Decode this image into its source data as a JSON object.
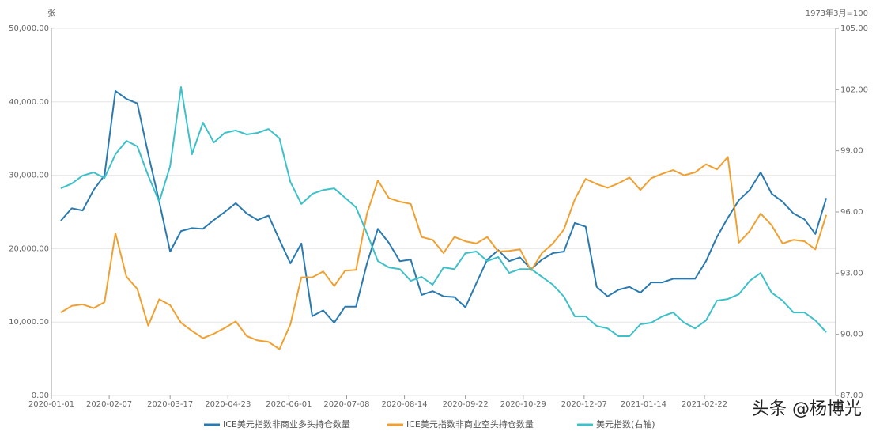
{
  "chart_data": {
    "type": "line",
    "y_unit_label": "张",
    "y2_unit_label": "1973年3月=100",
    "watermark": "头条 @杨博光",
    "x": [
      "2020-01-07",
      "2020-01-14",
      "2020-01-21",
      "2020-01-28",
      "2020-02-04",
      "2020-02-11",
      "2020-02-18",
      "2020-02-25",
      "2020-03-03",
      "2020-03-10",
      "2020-03-17",
      "2020-03-24",
      "2020-03-31",
      "2020-04-07",
      "2020-04-14",
      "2020-04-21",
      "2020-04-28",
      "2020-05-05",
      "2020-05-12",
      "2020-05-19",
      "2020-05-26",
      "2020-06-02",
      "2020-06-09",
      "2020-06-16",
      "2020-06-23",
      "2020-06-30",
      "2020-07-07",
      "2020-07-14",
      "2020-07-21",
      "2020-07-28",
      "2020-08-04",
      "2020-08-11",
      "2020-08-18",
      "2020-08-25",
      "2020-09-01",
      "2020-09-08",
      "2020-09-15",
      "2020-09-22",
      "2020-09-29",
      "2020-10-06",
      "2020-10-13",
      "2020-10-20",
      "2020-10-27",
      "2020-11-03",
      "2020-11-10",
      "2020-11-17",
      "2020-11-24",
      "2020-12-01",
      "2020-12-08",
      "2020-12-15",
      "2020-12-22",
      "2020-12-29",
      "2021-01-05",
      "2021-01-12",
      "2021-01-19",
      "2021-01-26",
      "2021-02-02",
      "2021-02-09",
      "2021-02-16",
      "2021-02-23",
      "2021-03-02",
      "2021-03-09",
      "2021-03-16",
      "2021-03-23",
      "2021-03-30",
      "2021-04-06",
      "2021-04-13",
      "2021-04-20",
      "2021-04-27",
      "2021-05-04",
      "2021-05-11"
    ],
    "series": [
      {
        "name": "ICE美元指数非商业多头持仓数量",
        "color": "#2a7ab0",
        "values": [
          23800,
          25500,
          25200,
          28000,
          30000,
          41500,
          40400,
          39800,
          32900,
          26400,
          19600,
          22400,
          22800,
          22700,
          23900,
          25000,
          26200,
          24800,
          23900,
          24500,
          21200,
          18000,
          20700,
          10800,
          11600,
          9900,
          12100,
          12100,
          18000,
          22700,
          20800,
          18300,
          18500,
          13700,
          14200,
          13500,
          13400,
          12000,
          15300,
          18500,
          19800,
          18300,
          18800,
          17200,
          18500,
          19400,
          19600,
          23500,
          23000,
          14800,
          13500,
          14400,
          14800,
          14000,
          15400,
          15400,
          15900,
          15900,
          15900,
          18300,
          21600,
          24200,
          26600,
          28000,
          30400,
          27500,
          26400,
          24800,
          24000,
          22000,
          26900
        ]
      },
      {
        "name": "ICE美元指数非商业空头持仓数量",
        "color": "#f0a030",
        "values": [
          11300,
          12200,
          12400,
          11900,
          12700,
          22100,
          16200,
          14500,
          9500,
          13100,
          12300,
          9900,
          8800,
          7800,
          8400,
          9200,
          10100,
          8100,
          7500,
          7300,
          6300,
          9700,
          16100,
          16100,
          16900,
          14900,
          17000,
          17100,
          24800,
          29300,
          26900,
          26400,
          26100,
          21600,
          21200,
          19400,
          21600,
          21000,
          20700,
          21600,
          19600,
          19700,
          19900,
          17000,
          19400,
          20700,
          22600,
          26700,
          29500,
          28800,
          28300,
          28900,
          29700,
          28000,
          29600,
          30200,
          30700,
          30000,
          30400,
          31500,
          30800,
          32500,
          20800,
          22400,
          24800,
          23200,
          20700,
          21200,
          21000,
          19900,
          24600
        ]
      },
      {
        "name": "美元指数(右轴)",
        "color": "#3ec0c8",
        "axis": "y2",
        "values": [
          97.16,
          97.39,
          97.78,
          97.94,
          97.67,
          98.83,
          99.49,
          99.22,
          97.78,
          96.5,
          98.25,
          102.13,
          98.83,
          100.38,
          99.41,
          99.88,
          100.0,
          99.8,
          99.88,
          100.07,
          99.61,
          97.47,
          96.39,
          96.89,
          97.08,
          97.16,
          96.7,
          96.23,
          94.95,
          93.59,
          93.28,
          93.2,
          92.62,
          92.82,
          92.43,
          93.28,
          93.2,
          93.98,
          94.06,
          93.59,
          93.79,
          93.01,
          93.2,
          93.2,
          92.82,
          92.43,
          91.85,
          90.88,
          90.88,
          90.41,
          90.29,
          89.91,
          89.91,
          90.49,
          90.57,
          90.88,
          91.07,
          90.57,
          90.29,
          90.68,
          91.65,
          91.73,
          91.96,
          92.62,
          93.01,
          92.04,
          91.65,
          91.07,
          91.07,
          90.68,
          90.1
        ]
      }
    ],
    "xlim": [
      "2020-01-01",
      "2021-05-17"
    ],
    "xticks": [
      "2020-01-01",
      "2020-02-07",
      "2020-03-17",
      "2020-04-23",
      "2020-06-01",
      "2020-07-08",
      "2020-08-14",
      "2020-09-22",
      "2020-10-29",
      "2020-12-07",
      "2021-01-14",
      "2021-02-22"
    ],
    "ylim": [
      0,
      50000
    ],
    "yticks": [
      {
        "value": 0,
        "label": "0.00"
      },
      {
        "value": 10000,
        "label": "10,000.00"
      },
      {
        "value": 20000,
        "label": "20,000.00"
      },
      {
        "value": 30000,
        "label": "30,000.00"
      },
      {
        "value": 40000,
        "label": "40,000.00"
      },
      {
        "value": 50000,
        "label": "50,000.00"
      }
    ],
    "y2lim": [
      87,
      105
    ],
    "y2ticks": [
      {
        "value": 87,
        "label": "87.00"
      },
      {
        "value": 90,
        "label": "90.00"
      },
      {
        "value": 93,
        "label": "93.00"
      },
      {
        "value": 96,
        "label": "96.00"
      },
      {
        "value": 99,
        "label": "99.00"
      },
      {
        "value": 102,
        "label": "102.00"
      },
      {
        "value": 105,
        "label": "105.00"
      }
    ],
    "grid": true,
    "legend": "bottom"
  }
}
